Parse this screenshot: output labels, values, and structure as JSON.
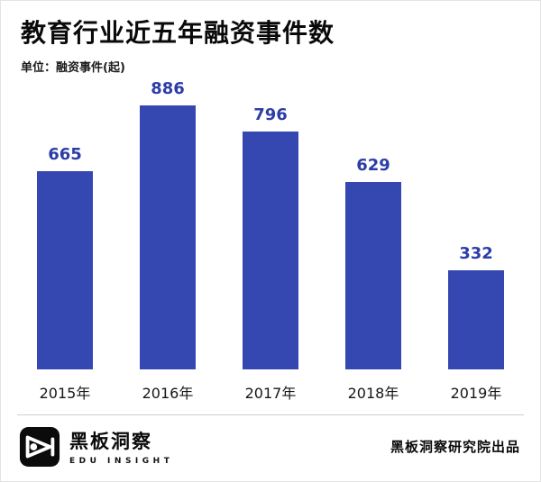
{
  "header": {
    "title": "教育行业近五年融资事件数",
    "unit": "单位：融资事件(起)"
  },
  "chart_data": {
    "type": "bar",
    "title": "教育行业近五年融资事件数",
    "unit_label": "单位：融资事件(起)",
    "categories": [
      "2015年",
      "2016年",
      "2017年",
      "2018年",
      "2019年"
    ],
    "values": [
      665,
      886,
      796,
      629,
      332
    ],
    "ylim": [
      0,
      900
    ],
    "grid": false,
    "legend": false,
    "bar_color": "#3547b1",
    "value_label_color": "#2c3da7",
    "category_label_color": "#161616"
  },
  "footer": {
    "logo_name": "黑板洞察",
    "logo_subtitle": "EDU INSIGHT",
    "credit": "黑板洞察研究院出品"
  }
}
